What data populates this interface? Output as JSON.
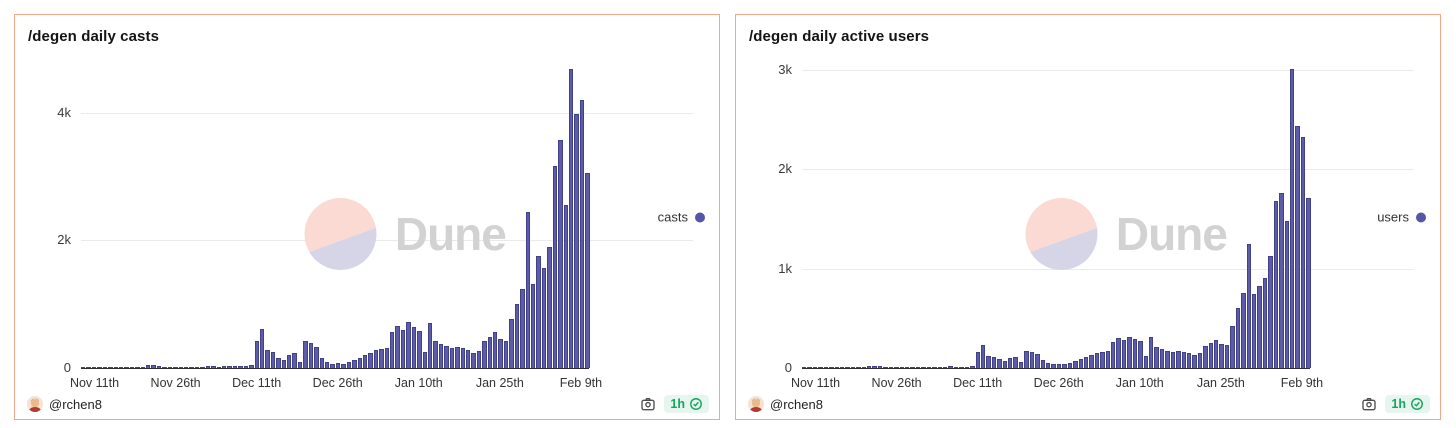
{
  "cards": [
    {
      "title": "/degen daily casts",
      "legend_label": "casts",
      "footer": {
        "username": "@rchen8",
        "time_badge": "1h"
      }
    },
    {
      "title": "/degen daily active users",
      "legend_label": "users",
      "footer": {
        "username": "@rchen8",
        "time_badge": "1h"
      }
    }
  ],
  "watermark_text": "Dune",
  "colors": {
    "card_border": "#f5a78b",
    "bar_fill": "#5c5cab",
    "bar_border": "#414188",
    "legend_dot": "#5456a8",
    "gridline": "#eaeaea",
    "axis_line": "#2e2e2e",
    "watermark_pink": "#fbdad3",
    "watermark_lavender": "#d6d5e8",
    "watermark_text_color": "#d2d2d2",
    "badge_green": "#17a45f",
    "badge_green_bg": "#e6f6ee"
  },
  "chart_data": [
    {
      "type": "bar",
      "title": "/degen daily casts",
      "series_name": "casts",
      "x_unit": "day",
      "ylim": [
        0,
        4700
      ],
      "grid": true,
      "legend_position": "right",
      "gridlines": [
        {
          "value": 0,
          "label": "0"
        },
        {
          "value": 2000,
          "label": "2k"
        },
        {
          "value": 4000,
          "label": "4k"
        }
      ],
      "ticks": [
        {
          "label": "Nov 11th",
          "index": 2
        },
        {
          "label": "Nov 26th",
          "index": 17
        },
        {
          "label": "Dec 11th",
          "index": 32
        },
        {
          "label": "Dec 26th",
          "index": 47
        },
        {
          "label": "Jan 10th",
          "index": 62
        },
        {
          "label": "Jan 25th",
          "index": 77
        },
        {
          "label": "Feb 9th",
          "index": 92
        }
      ],
      "values": [
        10,
        15,
        20,
        15,
        10,
        10,
        15,
        20,
        15,
        10,
        10,
        15,
        40,
        50,
        35,
        20,
        15,
        10,
        15,
        20,
        15,
        10,
        20,
        30,
        25,
        20,
        30,
        35,
        25,
        30,
        30,
        40,
        420,
        620,
        280,
        250,
        160,
        120,
        200,
        230,
        90,
        420,
        390,
        330,
        160,
        90,
        70,
        80,
        70,
        90,
        120,
        160,
        200,
        240,
        280,
        300,
        310,
        560,
        660,
        590,
        720,
        640,
        580,
        250,
        700,
        430,
        380,
        340,
        320,
        330,
        310,
        280,
        230,
        270,
        430,
        480,
        560,
        450,
        420,
        770,
        1000,
        1240,
        2460,
        1320,
        1760,
        1580,
        1910,
        3170,
        3580,
        2560,
        4700,
        4000,
        4220,
        3060
      ]
    },
    {
      "type": "bar",
      "title": "/degen daily active users",
      "series_name": "users",
      "x_unit": "day",
      "ylim": [
        0,
        3020
      ],
      "grid": true,
      "legend_position": "right",
      "gridlines": [
        {
          "value": 0,
          "label": "0"
        },
        {
          "value": 1000,
          "label": "1k"
        },
        {
          "value": 2000,
          "label": "2k"
        },
        {
          "value": 3000,
          "label": "3k"
        }
      ],
      "ticks": [
        {
          "label": "Nov 11th",
          "index": 2
        },
        {
          "label": "Nov 26th",
          "index": 17
        },
        {
          "label": "Dec 11th",
          "index": 32
        },
        {
          "label": "Dec 26th",
          "index": 47
        },
        {
          "label": "Jan 10th",
          "index": 62
        },
        {
          "label": "Jan 25th",
          "index": 77
        },
        {
          "label": "Feb 9th",
          "index": 92
        }
      ],
      "values": [
        5,
        8,
        10,
        8,
        5,
        5,
        8,
        10,
        8,
        5,
        5,
        8,
        20,
        25,
        18,
        10,
        8,
        5,
        8,
        10,
        8,
        5,
        10,
        15,
        12,
        10,
        15,
        18,
        12,
        15,
        15,
        20,
        160,
        230,
        120,
        110,
        90,
        75,
        100,
        115,
        60,
        170,
        160,
        140,
        80,
        50,
        40,
        45,
        40,
        50,
        70,
        90,
        110,
        130,
        150,
        160,
        170,
        260,
        300,
        280,
        310,
        290,
        270,
        120,
        310,
        210,
        190,
        170,
        160,
        170,
        160,
        150,
        130,
        150,
        220,
        250,
        280,
        240,
        230,
        420,
        610,
        760,
        1250,
        750,
        830,
        910,
        1130,
        1690,
        1770,
        1480,
        3020,
        2440,
        2330,
        1720
      ]
    }
  ]
}
